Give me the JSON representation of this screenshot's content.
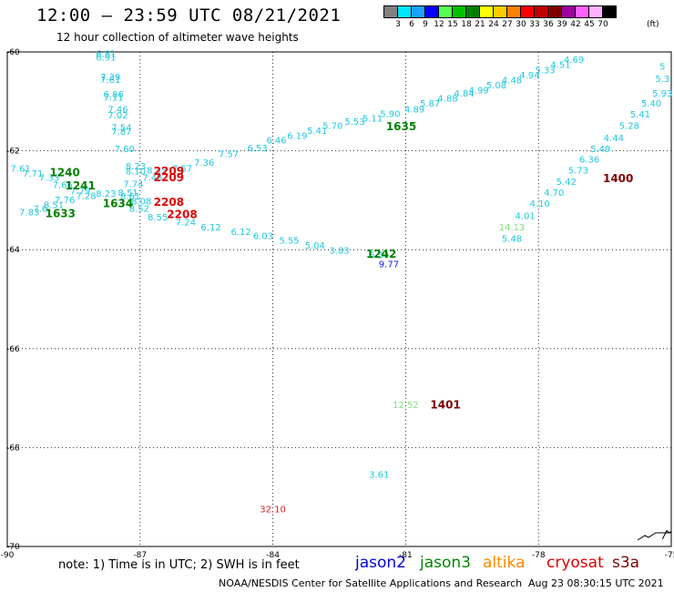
{
  "header": {
    "title": "12:00 – 23:59 UTC 08/21/2021",
    "subtitle": "12 hour collection of altimeter wave heights"
  },
  "colorbar": {
    "colors": [
      "#808080",
      "#00e5ff",
      "#1aa0ff",
      "#0000ff",
      "#55ff55",
      "#00c000",
      "#008000",
      "#ffff00",
      "#ffcc00",
      "#ff8000",
      "#ff0000",
      "#c00000",
      "#800000",
      "#a000a0",
      "#ff60ff",
      "#ffb0ff",
      "#000000"
    ],
    "labels": [
      "3",
      "6",
      "9",
      "12",
      "15",
      "18",
      "21",
      "24",
      "27",
      "30",
      "33",
      "36",
      "39",
      "42",
      "45",
      "70"
    ],
    "unit": "(ft)"
  },
  "chart_data": {
    "type": "scatter",
    "xlim": [
      -90,
      -75
    ],
    "ylim": [
      -70,
      -60
    ],
    "x_ticks": [
      "-90",
      "-87",
      "-84",
      "-81",
      "-78",
      "-75"
    ],
    "y_ticks": [
      "-60",
      "-62",
      "-64",
      "-66",
      "-68",
      "-70"
    ],
    "grid": true,
    "points": [
      {
        "x": -87.77,
        "y": -60.05,
        "label": "6.81",
        "color": "#1ec8e0"
      },
      {
        "x": -87.77,
        "y": -60.12,
        "label": "6.91",
        "color": "#1ec8e0"
      },
      {
        "x": -87.67,
        "y": -60.52,
        "label": "7.39",
        "color": "#1ec8e0"
      },
      {
        "x": -87.67,
        "y": -60.57,
        "label": "7.61",
        "color": "#1ec8e0"
      },
      {
        "x": -87.6,
        "y": -60.87,
        "label": "6.86",
        "color": "#1ec8e0"
      },
      {
        "x": -87.6,
        "y": -60.93,
        "label": "7.11",
        "color": "#1ec8e0"
      },
      {
        "x": -87.5,
        "y": -61.17,
        "label": "7.46",
        "color": "#1ec8e0"
      },
      {
        "x": -87.5,
        "y": -61.29,
        "label": "7.02",
        "color": "#1ec8e0"
      },
      {
        "x": -87.42,
        "y": -61.54,
        "label": "7.54",
        "color": "#1ec8e0"
      },
      {
        "x": -87.42,
        "y": -61.62,
        "label": "7.87",
        "color": "#1ec8e0"
      },
      {
        "x": -87.35,
        "y": -61.97,
        "label": "7.60",
        "color": "#1ec8e0"
      },
      {
        "x": -87.1,
        "y": -62.32,
        "label": "8.23",
        "color": "#1ec8e0"
      },
      {
        "x": -87.1,
        "y": -62.42,
        "label": "8.10",
        "color": "#1ec8e0"
      },
      {
        "x": -86.62,
        "y": -62.4,
        "label": "8.35",
        "color": "#1ec8e0"
      },
      {
        "x": -86.72,
        "y": -62.55,
        "label": "7.48",
        "color": "#1ec8e0"
      },
      {
        "x": -87.15,
        "y": -62.68,
        "label": "7.74",
        "color": "#1ec8e0"
      },
      {
        "x": -87.27,
        "y": -62.85,
        "label": "8.51",
        "color": "#1ec8e0"
      },
      {
        "x": -87.22,
        "y": -62.93,
        "label": "8.61",
        "color": "#1ec8e0"
      },
      {
        "x": -86.97,
        "y": -63.03,
        "label": "8.08",
        "color": "#1ec8e0"
      },
      {
        "x": -87.02,
        "y": -63.18,
        "label": "8.52",
        "color": "#1ec8e0"
      },
      {
        "x": -89.7,
        "y": -62.37,
        "label": "7.61",
        "color": "#1ec8e0"
      },
      {
        "x": -89.42,
        "y": -62.47,
        "label": "7.71",
        "color": "#1ec8e0"
      },
      {
        "x": -89.05,
        "y": -62.55,
        "label": "7.33",
        "color": "#1ec8e0"
      },
      {
        "x": -88.75,
        "y": -62.7,
        "label": "7.66",
        "color": "#1ec8e0"
      },
      {
        "x": -88.35,
        "y": -62.82,
        "label": "7.79",
        "color": "#1ec8e0"
      },
      {
        "x": -88.22,
        "y": -62.92,
        "label": "7.28",
        "color": "#1ec8e0"
      },
      {
        "x": -88.7,
        "y": -63.0,
        "label": "7.76",
        "color": "#1ec8e0"
      },
      {
        "x": -88.95,
        "y": -63.1,
        "label": "8.51",
        "color": "#1ec8e0"
      },
      {
        "x": -89.25,
        "y": -63.18,
        "label": "7.6",
        "color": "#1ec8e0"
      },
      {
        "x": -89.5,
        "y": -63.25,
        "label": "7.83",
        "color": "#1ec8e0"
      },
      {
        "x": -87.77,
        "y": -62.87,
        "label": "8.23",
        "color": "#1ec8e0"
      },
      {
        "x": -86.05,
        "y": -62.37,
        "label": "7.57",
        "color": "#1ec8e0"
      },
      {
        "x": -85.55,
        "y": -62.25,
        "label": "7.36",
        "color": "#1ec8e0"
      },
      {
        "x": -85.0,
        "y": -62.07,
        "label": "7.57",
        "color": "#1ec8e0"
      },
      {
        "x": -84.35,
        "y": -61.95,
        "label": "6.53",
        "color": "#1ec8e0"
      },
      {
        "x": -83.92,
        "y": -61.8,
        "label": "6.46",
        "color": "#1ec8e0"
      },
      {
        "x": -83.45,
        "y": -61.7,
        "label": "6.19",
        "color": "#1ec8e0"
      },
      {
        "x": -83.0,
        "y": -61.6,
        "label": "5.41",
        "color": "#1ec8e0"
      },
      {
        "x": -82.65,
        "y": -61.5,
        "label": "5.70",
        "color": "#1ec8e0"
      },
      {
        "x": -82.15,
        "y": -61.42,
        "label": "5.53",
        "color": "#1ec8e0"
      },
      {
        "x": -81.75,
        "y": -61.35,
        "label": "5.11",
        "color": "#1ec8e0"
      },
      {
        "x": -81.35,
        "y": -61.26,
        "label": "5.90",
        "color": "#1ec8e0"
      },
      {
        "x": -80.8,
        "y": -61.17,
        "label": "4.89",
        "color": "#1ec8e0"
      },
      {
        "x": -80.45,
        "y": -61.05,
        "label": "5.87",
        "color": "#1ec8e0"
      },
      {
        "x": -80.05,
        "y": -60.95,
        "label": "4.88",
        "color": "#1ec8e0"
      },
      {
        "x": -79.68,
        "y": -60.85,
        "label": "4.84",
        "color": "#1ec8e0"
      },
      {
        "x": -79.35,
        "y": -60.78,
        "label": "4.99",
        "color": "#1ec8e0"
      },
      {
        "x": -78.95,
        "y": -60.68,
        "label": "5.08",
        "color": "#1ec8e0"
      },
      {
        "x": -78.6,
        "y": -60.58,
        "label": "4.48",
        "color": "#1ec8e0"
      },
      {
        "x": -78.2,
        "y": -60.48,
        "label": "4.94",
        "color": "#1ec8e0"
      },
      {
        "x": -77.85,
        "y": -60.38,
        "label": "5.33",
        "color": "#1ec8e0"
      },
      {
        "x": -77.5,
        "y": -60.27,
        "label": "4.51",
        "color": "#1ec8e0"
      },
      {
        "x": -77.2,
        "y": -60.17,
        "label": "4.69",
        "color": "#1ec8e0"
      },
      {
        "x": -86.6,
        "y": -63.35,
        "label": "8.55",
        "color": "#1ec8e0"
      },
      {
        "x": -85.97,
        "y": -63.45,
        "label": "7.24",
        "color": "#1ec8e0"
      },
      {
        "x": -85.4,
        "y": -63.55,
        "label": "6.12",
        "color": "#1ec8e0"
      },
      {
        "x": -84.72,
        "y": -63.65,
        "label": "6.12",
        "color": "#1ec8e0"
      },
      {
        "x": -84.22,
        "y": -63.73,
        "label": "6.03",
        "color": "#1ec8e0"
      },
      {
        "x": -83.63,
        "y": -63.82,
        "label": "5.55",
        "color": "#1ec8e0"
      },
      {
        "x": -83.05,
        "y": -63.92,
        "label": "5.04",
        "color": "#1ec8e0"
      },
      {
        "x": -82.5,
        "y": -64.02,
        "label": "3.83",
        "color": "#1ec8e0"
      },
      {
        "x": -81.6,
        "y": -64.12,
        "label": "5.34",
        "color": "#1ec8e0"
      },
      {
        "x": -81.38,
        "y": -64.3,
        "label": "9.77",
        "color": "#1a1aee"
      },
      {
        "x": -75.2,
        "y": -60.3,
        "label": "5",
        "color": "#1ec8e0"
      },
      {
        "x": -75.2,
        "y": -60.55,
        "label": "5.3",
        "color": "#1ec8e0"
      },
      {
        "x": -75.2,
        "y": -60.85,
        "label": "5.93",
        "color": "#1ec8e0"
      },
      {
        "x": -75.45,
        "y": -61.05,
        "label": "5.40",
        "color": "#1ec8e0"
      },
      {
        "x": -75.7,
        "y": -61.27,
        "label": "5.41",
        "color": "#1ec8e0"
      },
      {
        "x": -75.95,
        "y": -61.5,
        "label": "5.28",
        "color": "#1ec8e0"
      },
      {
        "x": -76.3,
        "y": -61.75,
        "label": "4.44",
        "color": "#1ec8e0"
      },
      {
        "x": -76.6,
        "y": -61.97,
        "label": "5.49",
        "color": "#1ec8e0"
      },
      {
        "x": -76.85,
        "y": -62.18,
        "label": "6.36",
        "color": "#1ec8e0"
      },
      {
        "x": -77.1,
        "y": -62.4,
        "label": "5.73",
        "color": "#1ec8e0"
      },
      {
        "x": -77.37,
        "y": -62.63,
        "label": "5.42",
        "color": "#1ec8e0"
      },
      {
        "x": -77.65,
        "y": -62.85,
        "label": "4.70",
        "color": "#1ec8e0"
      },
      {
        "x": -77.97,
        "y": -63.08,
        "label": "4.10",
        "color": "#1ec8e0"
      },
      {
        "x": -78.3,
        "y": -63.32,
        "label": "4.01",
        "color": "#1ec8e0"
      },
      {
        "x": -78.6,
        "y": -63.55,
        "label": "14.13",
        "color": "#7ee07e"
      },
      {
        "x": -78.6,
        "y": -63.78,
        "label": "5.48",
        "color": "#1ec8e0"
      },
      {
        "x": -81.0,
        "y": -67.15,
        "label": "12.52",
        "color": "#7ee07e"
      },
      {
        "x": -81.6,
        "y": -68.55,
        "label": "3.61",
        "color": "#1ec8e0"
      },
      {
        "x": -84.0,
        "y": -69.25,
        "label": "32.10",
        "color": "#dd2222"
      }
    ],
    "time_labels": [
      {
        "x": -88.7,
        "y": -62.45,
        "label": "1240",
        "color": "#008000"
      },
      {
        "x": -88.35,
        "y": -62.72,
        "label": "1241",
        "color": "#008000"
      },
      {
        "x": -87.5,
        "y": -63.08,
        "label": "1634",
        "color": "#008000"
      },
      {
        "x": -88.8,
        "y": -63.28,
        "label": "1633",
        "color": "#008000"
      },
      {
        "x": -81.1,
        "y": -61.52,
        "label": "1635",
        "color": "#008000"
      },
      {
        "x": -81.55,
        "y": -64.1,
        "label": "1242",
        "color": "#008000"
      },
      {
        "x": -86.35,
        "y": -62.42,
        "label": "2209",
        "color": "#e00000"
      },
      {
        "x": -86.35,
        "y": -62.55,
        "label": "2209",
        "color": "#e00000"
      },
      {
        "x": -86.35,
        "y": -63.05,
        "label": "2208",
        "color": "#e00000"
      },
      {
        "x": -86.05,
        "y": -63.3,
        "label": "2208",
        "color": "#e00000"
      },
      {
        "x": -76.2,
        "y": -62.57,
        "label": "1400",
        "color": "#800000"
      },
      {
        "x": -80.1,
        "y": -67.15,
        "label": "1401",
        "color": "#800000"
      }
    ]
  },
  "footer": {
    "note": "note: 1) Time is in UTC; 2) SWH is in feet",
    "satellites": [
      {
        "name": "jason2",
        "color": "#0000dd"
      },
      {
        "name": "jason3",
        "color": "#008800"
      },
      {
        "name": "altika",
        "color": "#ff8800"
      },
      {
        "name": "cryosat",
        "color": "#dd0000"
      },
      {
        "name": "s3a",
        "color": "#800000"
      }
    ],
    "credit": "NOAA/NESDIS Center for Satellite Applications and Research",
    "generated": "Aug 23 08:30:15 UTC 2021"
  }
}
